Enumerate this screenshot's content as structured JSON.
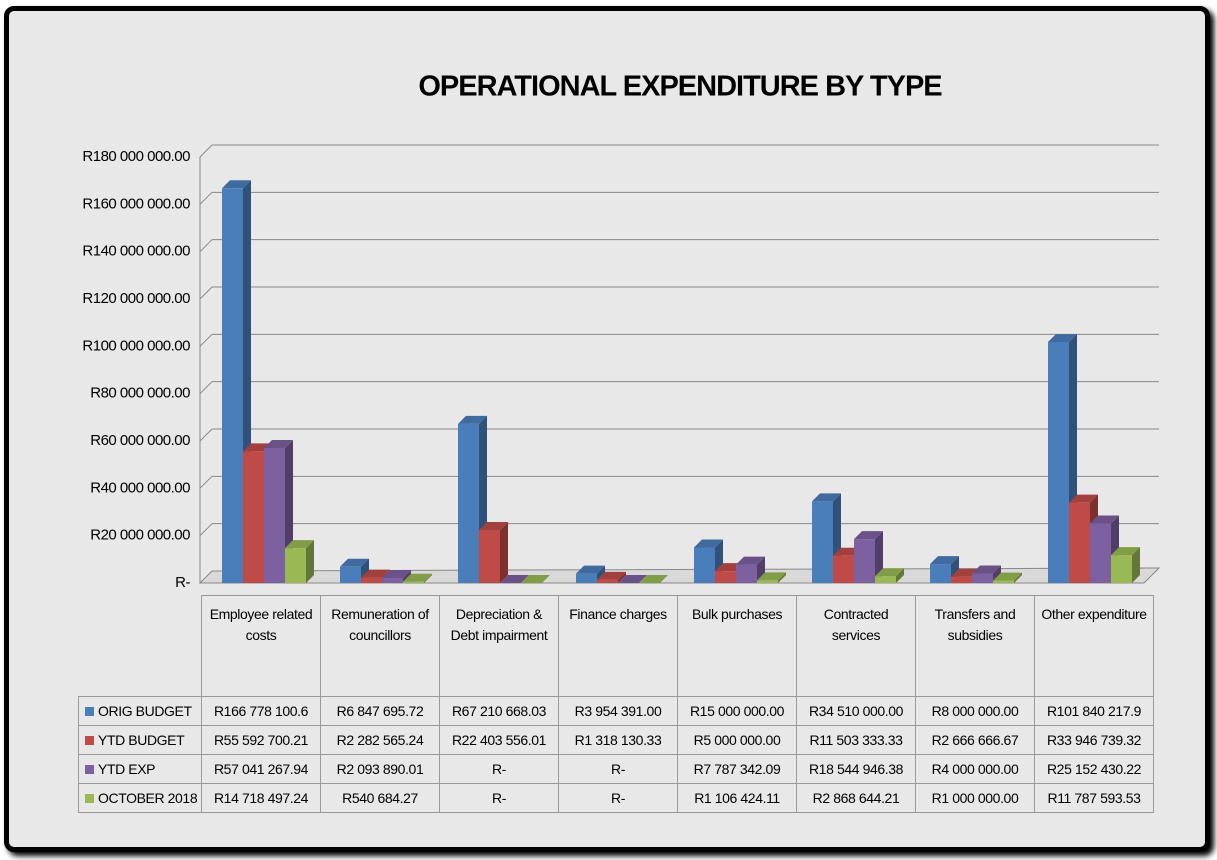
{
  "chart_data": {
    "type": "bar3d",
    "title": "OPERATIONAL EXPENDITURE BY TYPE",
    "categories": [
      "Employee related costs",
      "Remuneration of councillors",
      "Depreciation & Debt impairment",
      "Finance charges",
      "Bulk purchases",
      "Contracted services",
      "Transfers and subsidies",
      "Other expenditure"
    ],
    "series": [
      {
        "name": "ORIG BUDGET",
        "color": "#4a7ebb",
        "values": [
          166778100.6,
          6847695.72,
          67210668.03,
          3954391.0,
          15000000.0,
          34510000.0,
          8000000.0,
          101840217.9
        ],
        "value_labels": [
          "R166 778 100.6",
          "R6 847 695.72",
          "R67 210 668.03",
          "R3 954 391.00",
          "R15 000 000.00",
          "R34 510 000.00",
          "R8 000 000.00",
          "R101 840 217.9"
        ]
      },
      {
        "name": "YTD BUDGET",
        "color": "#be4b48",
        "values": [
          55592700.21,
          2282565.24,
          22403556.01,
          1318130.33,
          5000000.0,
          11503333.33,
          2666666.67,
          33946739.32
        ],
        "value_labels": [
          "R55 592 700.21",
          "R2 282 565.24",
          "R22 403 556.01",
          "R1 318 130.33",
          "R5 000 000.00",
          "R11 503 333.33",
          "R2 666 666.67",
          "R33 946 739.32"
        ]
      },
      {
        "name": "YTD EXP",
        "color": "#7d60a0",
        "values": [
          57041267.94,
          2093890.01,
          0,
          0,
          7787342.09,
          18544946.38,
          4000000.0,
          25152430.22
        ],
        "value_labels": [
          "R57 041 267.94",
          "R2 093 890.01",
          "R-",
          "R-",
          "R7 787 342.09",
          "R18 544 946.38",
          "R4 000 000.00",
          "R25 152 430.22"
        ]
      },
      {
        "name": "OCTOBER 2018",
        "color": "#98b954",
        "values": [
          14718497.24,
          540684.27,
          0,
          0,
          1106424.11,
          2868644.21,
          1000000.0,
          11787593.53
        ],
        "value_labels": [
          "R14 718 497.24",
          "R540 684.27",
          "R-",
          "R-",
          "R1 106 424.11",
          "R2 868 644.21",
          "R1 000 000.00",
          "R11 787 593.53"
        ]
      }
    ],
    "ylim": [
      0,
      180000000
    ],
    "yticks": [
      {
        "value": 0,
        "label": "R-"
      },
      {
        "value": 20000000,
        "label": "R20 000 000.00"
      },
      {
        "value": 40000000,
        "label": "R40 000 000.00"
      },
      {
        "value": 60000000,
        "label": "R60 000 000.00"
      },
      {
        "value": 80000000,
        "label": "R80 000 000.00"
      },
      {
        "value": 100000000,
        "label": "R100 000 000.00"
      },
      {
        "value": 120000000,
        "label": "R120 000 000.00"
      },
      {
        "value": 140000000,
        "label": "R140 000 000.00"
      },
      {
        "value": 160000000,
        "label": "R160 000 000.00"
      },
      {
        "value": 180000000,
        "label": "R180 000 000.00"
      }
    ],
    "grid": true
  }
}
